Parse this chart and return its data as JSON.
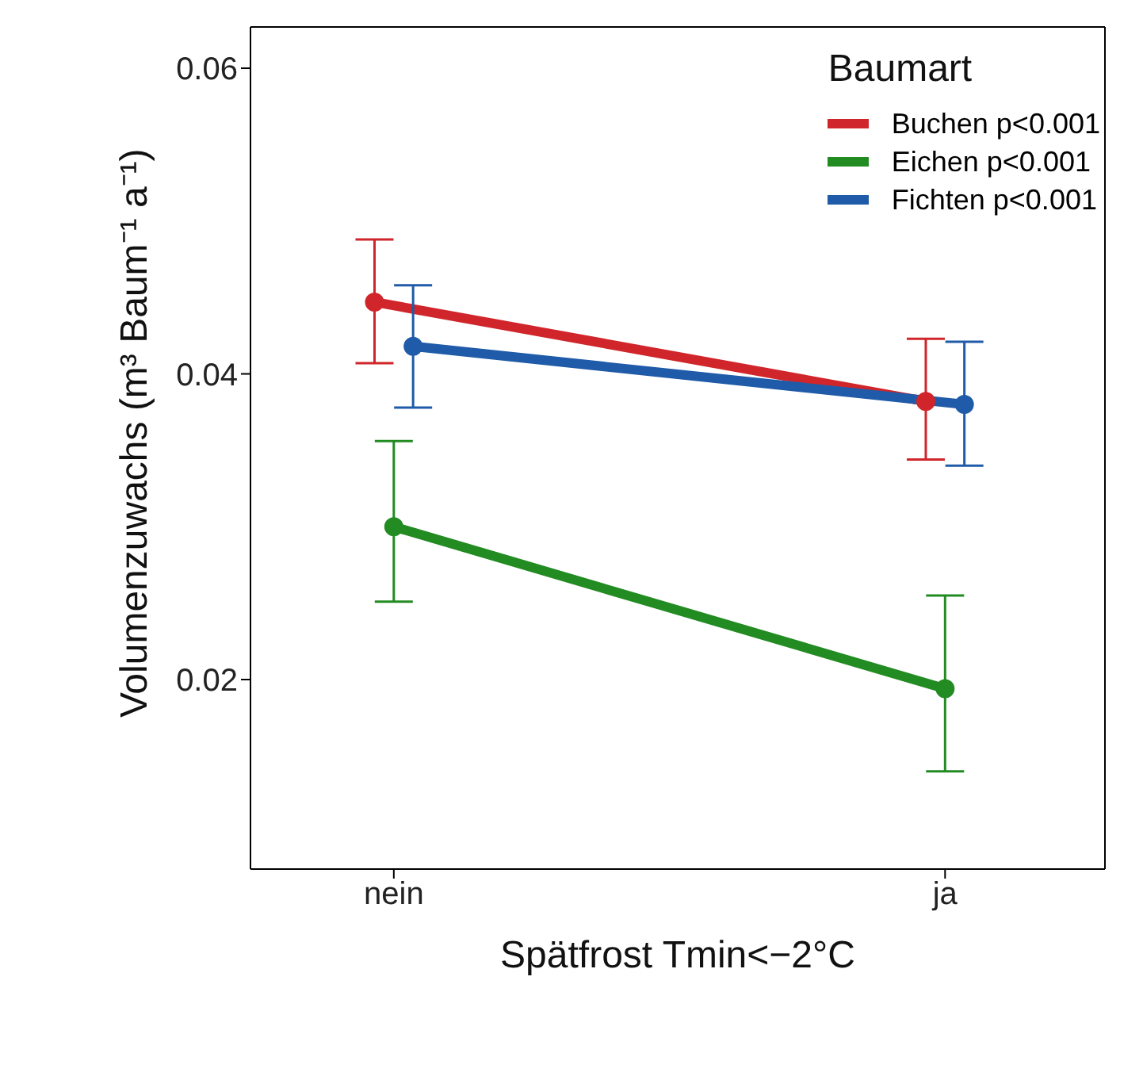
{
  "chart_data": {
    "type": "line",
    "xlabel": "Spätfrost Tmin<−2°C",
    "ylabel": "Volumenzuwachs (m³ Baum⁻¹ a⁻¹)",
    "legend_title": "Baumart",
    "categories": [
      "nein",
      "ja"
    ],
    "series": [
      {
        "name": "Buchen p<0.001",
        "color": "#d0262b",
        "values": [
          0.0447,
          0.0382
        ],
        "errors": [
          [
            0.0407,
            0.0488
          ],
          [
            0.0344,
            0.0423
          ]
        ]
      },
      {
        "name": "Eichen p<0.001",
        "color": "#228b22",
        "values": [
          0.03,
          0.0194
        ],
        "errors": [
          [
            0.0251,
            0.0356
          ],
          [
            0.014,
            0.0255
          ]
        ]
      },
      {
        "name": "Fichten p<0.001",
        "color": "#1f5ba8",
        "values": [
          0.0418,
          0.038
        ],
        "errors": [
          [
            0.0378,
            0.0458
          ],
          [
            0.034,
            0.0421
          ]
        ]
      }
    ],
    "ylim": [
      0.0076,
      0.0627
    ],
    "yticks": [
      0.02,
      0.04,
      0.06
    ],
    "legend": "top right",
    "marker": "circle",
    "line_style": "solid"
  }
}
